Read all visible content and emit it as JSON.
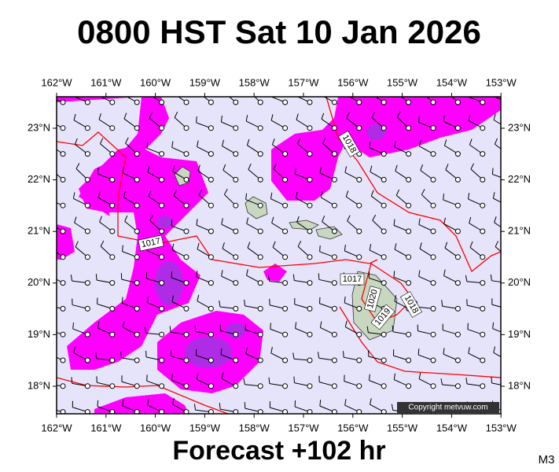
{
  "header": {
    "title": "0800 HST Sat 10 Jan 2026"
  },
  "map": {
    "lon_labels": [
      "162°W",
      "161°W",
      "160°W",
      "159°W",
      "158°W",
      "157°W",
      "156°W",
      "155°W",
      "154°W",
      "153°W"
    ],
    "lat_labels": [
      "23°N",
      "22°N",
      "21°N",
      "20°N",
      "19°N",
      "18°N"
    ],
    "isobar_labels": [
      "1018",
      "1017",
      "1017",
      "1020",
      "1019",
      "1018"
    ],
    "copyright": "Copyright metvuw.com"
  },
  "footer": {
    "forecast": "Forecast +102 hr",
    "model": "M3"
  }
}
